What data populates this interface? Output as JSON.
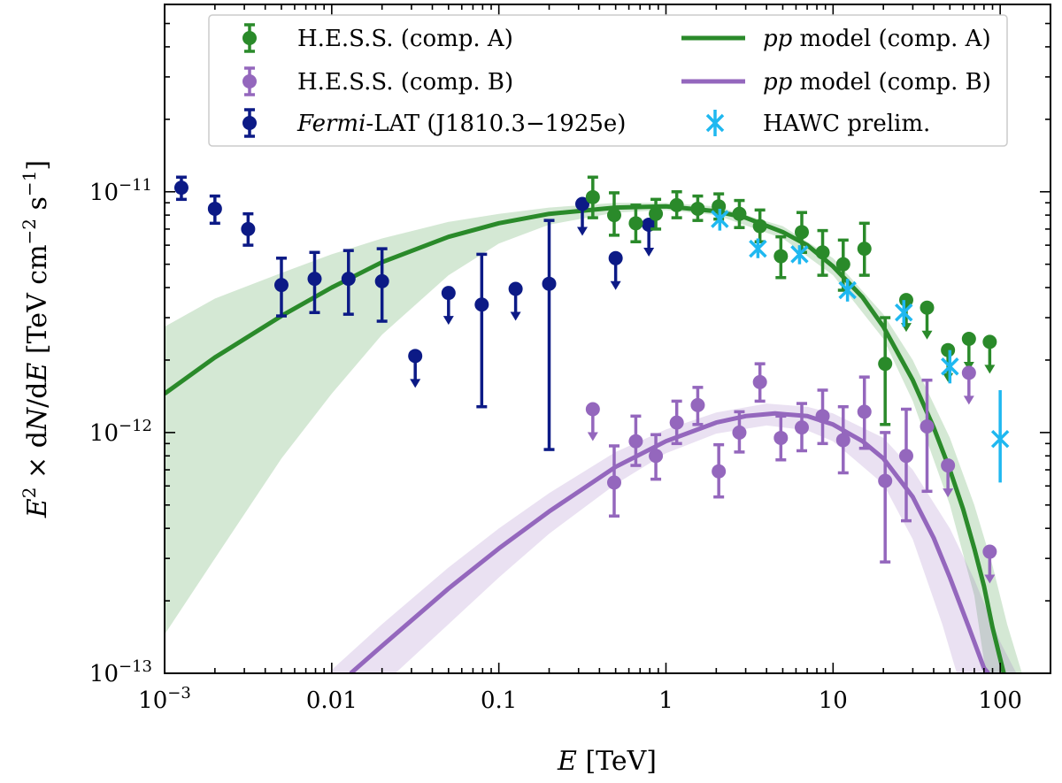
{
  "chart_data": {
    "type": "scatter",
    "xscale": "log",
    "yscale": "log",
    "xlim": [
      0.001,
      200
    ],
    "ylim": [
      1e-13,
      6e-11
    ],
    "xlabel": "E [TeV]",
    "ylabel": "E² × dN/dE [TeV cm⁻² s⁻¹]",
    "x_ticks": [
      {
        "value": 0.001,
        "label_base": "10",
        "label_exp": "−3"
      },
      {
        "value": 0.01,
        "label": "0.01"
      },
      {
        "value": 0.1,
        "label": "0.1"
      },
      {
        "value": 1,
        "label": "1"
      },
      {
        "value": 10,
        "label": "10"
      },
      {
        "value": 100,
        "label": "100"
      }
    ],
    "y_ticks": [
      {
        "value": 1e-13,
        "label_base": "10",
        "label_exp": "−13"
      },
      {
        "value": 1e-12,
        "label_base": "10",
        "label_exp": "−12"
      },
      {
        "value": 1e-11,
        "label_base": "10",
        "label_exp": "−11"
      }
    ],
    "legend": {
      "position": "top",
      "items": [
        {
          "label": "H.E.S.S. (comp. A)",
          "color": "#2a8a2a",
          "kind": "point"
        },
        {
          "label": "H.E.S.S. (comp. B)",
          "color": "#9467bd",
          "kind": "point"
        },
        {
          "label_italic": "Fermi",
          "label": "-LAT (J1810.3−1925e)",
          "color": "#0c1a86",
          "kind": "point"
        },
        {
          "label_italic": "pp",
          "label": " model (comp. A)",
          "color": "#2a8a2a",
          "kind": "line"
        },
        {
          "label_italic": "pp",
          "label": " model (comp. B)",
          "color": "#9467bd",
          "kind": "line"
        },
        {
          "label": "HAWC prelim.",
          "color": "#1fb8f0",
          "kind": "cross"
        }
      ]
    },
    "series": [
      {
        "name": "Fermi-LAT (J1810.3−1925e)",
        "color": "#0c1a86",
        "points": [
          {
            "x": 0.00126,
            "y": 1.04e-11,
            "lo": 9.3e-12,
            "hi": 1.15e-11
          },
          {
            "x": 0.002,
            "y": 8.5e-12,
            "lo": 7.4e-12,
            "hi": 9.6e-12
          },
          {
            "x": 0.00316,
            "y": 7e-12,
            "lo": 6e-12,
            "hi": 8.1e-12
          },
          {
            "x": 0.005,
            "y": 4.1e-12,
            "lo": 3.05e-12,
            "hi": 5.3e-12
          },
          {
            "x": 0.0079,
            "y": 4.35e-12,
            "lo": 3.15e-12,
            "hi": 5.6e-12
          },
          {
            "x": 0.0126,
            "y": 4.35e-12,
            "lo": 3.1e-12,
            "hi": 5.7e-12
          },
          {
            "x": 0.02,
            "y": 4.25e-12,
            "lo": 2.9e-12,
            "hi": 5.8e-12
          },
          {
            "x": 0.0316,
            "y": 2.08e-12,
            "ul": true
          },
          {
            "x": 0.05,
            "y": 3.8e-12,
            "ul": true
          },
          {
            "x": 0.079,
            "y": 3.4e-12,
            "lo": 1.28e-12,
            "hi": 5.5e-12
          },
          {
            "x": 0.126,
            "y": 3.95e-12,
            "ul": true
          },
          {
            "x": 0.2,
            "y": 4.15e-12,
            "lo": 8.5e-13,
            "hi": 7.6e-12
          },
          {
            "x": 0.316,
            "y": 8.9e-12,
            "ul": true
          },
          {
            "x": 0.5,
            "y": 5.3e-12,
            "ul": true
          },
          {
            "x": 0.79,
            "y": 7.3e-12,
            "ul": true
          }
        ]
      },
      {
        "name": "H.E.S.S. (comp. A)",
        "color": "#2a8a2a",
        "points": [
          {
            "x": 0.365,
            "y": 9.5e-12,
            "lo": 7.8e-12,
            "hi": 1.15e-11
          },
          {
            "x": 0.49,
            "y": 8e-12,
            "lo": 6.6e-12,
            "hi": 9.9e-12
          },
          {
            "x": 0.66,
            "y": 7.4e-12,
            "lo": 6.2e-12,
            "hi": 8.8e-12
          },
          {
            "x": 0.87,
            "y": 8.1e-12,
            "lo": 7e-12,
            "hi": 9.3e-12
          },
          {
            "x": 1.16,
            "y": 8.8e-12,
            "lo": 7.8e-12,
            "hi": 1e-11
          },
          {
            "x": 1.55,
            "y": 8.5e-12,
            "lo": 7.6e-12,
            "hi": 9.6e-12
          },
          {
            "x": 2.07,
            "y": 8.7e-12,
            "lo": 7.7e-12,
            "hi": 9.8e-12
          },
          {
            "x": 2.75,
            "y": 8.1e-12,
            "lo": 7.1e-12,
            "hi": 9.2e-12
          },
          {
            "x": 3.65,
            "y": 7.2e-12,
            "lo": 6.2e-12,
            "hi": 8.4e-12
          },
          {
            "x": 4.87,
            "y": 5.4e-12,
            "lo": 4.4e-12,
            "hi": 6.5e-12
          },
          {
            "x": 6.5,
            "y": 6.8e-12,
            "lo": 5.6e-12,
            "hi": 8.2e-12
          },
          {
            "x": 8.66,
            "y": 5.6e-12,
            "lo": 4.5e-12,
            "hi": 6.9e-12
          },
          {
            "x": 11.5,
            "y": 5e-12,
            "lo": 3.9e-12,
            "hi": 6.3e-12
          },
          {
            "x": 15.4,
            "y": 5.8e-12,
            "lo": 4.5e-12,
            "hi": 7.4e-12
          },
          {
            "x": 20.5,
            "y": 1.93e-12,
            "lo": 1.08e-12,
            "hi": 3e-12
          },
          {
            "x": 27.4,
            "y": 3.55e-12,
            "ul": true
          },
          {
            "x": 36.5,
            "y": 3.3e-12,
            "ul": true
          },
          {
            "x": 48.7,
            "y": 2.2e-12,
            "ul": true
          },
          {
            "x": 65,
            "y": 2.45e-12,
            "ul": true
          },
          {
            "x": 86.6,
            "y": 2.38e-12,
            "ul": true
          }
        ]
      },
      {
        "name": "H.E.S.S. (comp. B)",
        "color": "#9467bd",
        "points": [
          {
            "x": 0.365,
            "y": 1.25e-12,
            "ul": true
          },
          {
            "x": 0.49,
            "y": 6.2e-13,
            "lo": 4.5e-13,
            "hi": 8.8e-13
          },
          {
            "x": 0.66,
            "y": 9.2e-13,
            "lo": 7.3e-13,
            "hi": 1.17e-12
          },
          {
            "x": 0.87,
            "y": 8e-13,
            "lo": 6.4e-13,
            "hi": 9.8e-13
          },
          {
            "x": 1.16,
            "y": 1.1e-12,
            "lo": 9e-13,
            "hi": 1.35e-12
          },
          {
            "x": 1.55,
            "y": 1.3e-12,
            "lo": 1.08e-12,
            "hi": 1.54e-12
          },
          {
            "x": 2.07,
            "y": 6.9e-13,
            "lo": 5.4e-13,
            "hi": 8.9e-13
          },
          {
            "x": 2.75,
            "y": 1e-12,
            "lo": 8.3e-13,
            "hi": 1.22e-12
          },
          {
            "x": 3.65,
            "y": 1.62e-12,
            "lo": 1.35e-12,
            "hi": 1.93e-12
          },
          {
            "x": 4.87,
            "y": 9.5e-13,
            "lo": 7.7e-13,
            "hi": 1.17e-12
          },
          {
            "x": 6.5,
            "y": 1.05e-12,
            "lo": 8.4e-13,
            "hi": 1.32e-12
          },
          {
            "x": 8.66,
            "y": 1.17e-12,
            "lo": 9e-13,
            "hi": 1.5e-12
          },
          {
            "x": 11.5,
            "y": 9.3e-13,
            "lo": 6.8e-13,
            "hi": 1.28e-12
          },
          {
            "x": 15.4,
            "y": 1.22e-12,
            "lo": 8.6e-13,
            "hi": 1.7e-12
          },
          {
            "x": 20.5,
            "y": 6.3e-13,
            "lo": 2.9e-13,
            "hi": 1e-12
          },
          {
            "x": 27.4,
            "y": 8e-13,
            "lo": 4.3e-13,
            "hi": 1.25e-12
          },
          {
            "x": 36.5,
            "y": 1.06e-12,
            "lo": 5.7e-13,
            "hi": 1.65e-12
          },
          {
            "x": 48.7,
            "y": 7.3e-13,
            "ul": true
          },
          {
            "x": 65,
            "y": 1.77e-12,
            "ul": true
          },
          {
            "x": 86.6,
            "y": 3.2e-13,
            "ul": true
          }
        ]
      },
      {
        "name": "HAWC prelim.",
        "color": "#1fb8f0",
        "marker": "x",
        "points": [
          {
            "x": 2.1,
            "y": 7.7e-12,
            "lo": 6.9e-12,
            "hi": 8.5e-12
          },
          {
            "x": 3.55,
            "y": 5.8e-12,
            "lo": 5.3e-12,
            "hi": 6.4e-12
          },
          {
            "x": 6.3,
            "y": 5.5e-12,
            "lo": 5e-12,
            "hi": 6e-12
          },
          {
            "x": 12.2,
            "y": 3.9e-12,
            "lo": 3.5e-12,
            "hi": 4.35e-12
          },
          {
            "x": 26.5,
            "y": 3.15e-12,
            "lo": 2.75e-12,
            "hi": 3.55e-12
          },
          {
            "x": 50,
            "y": 1.88e-12,
            "lo": 1.6e-12,
            "hi": 2.2e-12
          },
          {
            "x": 100,
            "y": 9.4e-13,
            "lo": 6.2e-13,
            "hi": 1.5e-12
          }
        ]
      }
    ],
    "models": [
      {
        "name": "pp model (comp. A)",
        "color": "#2a8a2a",
        "band_color": "#2a8a2a",
        "band_opacity": 0.2,
        "curve": [
          [
            0.001,
            1.45e-12
          ],
          [
            0.002,
            2.05e-12
          ],
          [
            0.005,
            3.05e-12
          ],
          [
            0.01,
            4e-12
          ],
          [
            0.02,
            5.1e-12
          ],
          [
            0.05,
            6.5e-12
          ],
          [
            0.1,
            7.4e-12
          ],
          [
            0.2,
            8.1e-12
          ],
          [
            0.5,
            8.6e-12
          ],
          [
            1,
            8.7e-12
          ],
          [
            2,
            8.3e-12
          ],
          [
            3,
            7.8e-12
          ],
          [
            5,
            6.8e-12
          ],
          [
            7,
            6e-12
          ],
          [
            10,
            4.9e-12
          ],
          [
            15,
            3.65e-12
          ],
          [
            20,
            2.75e-12
          ],
          [
            30,
            1.65e-12
          ],
          [
            40,
            1.05e-12
          ],
          [
            50,
            7e-13
          ],
          [
            60,
            4.8e-13
          ],
          [
            70,
            3.3e-13
          ],
          [
            80,
            2.3e-13
          ],
          [
            90,
            1.55e-13
          ],
          [
            105,
            1e-13
          ]
        ],
        "band_upper": [
          [
            0.001,
            2.75e-12
          ],
          [
            0.002,
            3.6e-12
          ],
          [
            0.005,
            4.6e-12
          ],
          [
            0.01,
            5.5e-12
          ],
          [
            0.02,
            6.4e-12
          ],
          [
            0.05,
            7.5e-12
          ],
          [
            0.1,
            8.1e-12
          ],
          [
            0.2,
            8.6e-12
          ],
          [
            0.5,
            9e-12
          ],
          [
            1,
            9e-12
          ],
          [
            2,
            8.7e-12
          ],
          [
            5,
            7.2e-12
          ],
          [
            10,
            5.3e-12
          ],
          [
            20,
            3.1e-12
          ],
          [
            30,
            2e-12
          ],
          [
            50,
            9.5e-13
          ],
          [
            70,
            5e-13
          ],
          [
            90,
            2.8e-13
          ],
          [
            110,
            1.6e-13
          ],
          [
            135,
            1e-13
          ]
        ],
        "band_lower": [
          [
            0.001,
            1.45e-13
          ],
          [
            0.002,
            3e-13
          ],
          [
            0.005,
            7.8e-13
          ],
          [
            0.01,
            1.45e-12
          ],
          [
            0.02,
            2.55e-12
          ],
          [
            0.05,
            4.5e-12
          ],
          [
            0.1,
            6.1e-12
          ],
          [
            0.2,
            7.3e-12
          ],
          [
            0.5,
            8.2e-12
          ],
          [
            1,
            8.4e-12
          ],
          [
            2,
            8e-12
          ],
          [
            5,
            6.4e-12
          ],
          [
            10,
            4.5e-12
          ],
          [
            20,
            2.45e-12
          ],
          [
            30,
            1.35e-12
          ],
          [
            50,
            5e-13
          ],
          [
            70,
            2.1e-13
          ],
          [
            82,
            1e-13
          ]
        ]
      },
      {
        "name": "pp model (comp. B)",
        "color": "#9467bd",
        "band_color": "#9467bd",
        "band_opacity": 0.2,
        "curve": [
          [
            0.013,
            1e-13
          ],
          [
            0.02,
            1.3e-13
          ],
          [
            0.05,
            2.25e-13
          ],
          [
            0.1,
            3.3e-13
          ],
          [
            0.2,
            4.7e-13
          ],
          [
            0.5,
            7.2e-13
          ],
          [
            1,
            9.2e-13
          ],
          [
            2,
            1.1e-12
          ],
          [
            3,
            1.17e-12
          ],
          [
            4.5,
            1.2e-12
          ],
          [
            7,
            1.17e-12
          ],
          [
            10,
            1.08e-12
          ],
          [
            15,
            9.2e-13
          ],
          [
            20,
            7.8e-13
          ],
          [
            30,
            5.4e-13
          ],
          [
            40,
            3.65e-13
          ],
          [
            50,
            2.5e-13
          ],
          [
            65,
            1.55e-13
          ],
          [
            80,
            1.05e-13
          ],
          [
            85,
            1e-13
          ]
        ],
        "band_upper": [
          [
            0.0095,
            1e-13
          ],
          [
            0.02,
            1.6e-13
          ],
          [
            0.05,
            2.75e-13
          ],
          [
            0.1,
            4e-13
          ],
          [
            0.2,
            5.6e-13
          ],
          [
            0.5,
            8.3e-13
          ],
          [
            1,
            1.03e-12
          ],
          [
            2,
            1.21e-12
          ],
          [
            4,
            1.32e-12
          ],
          [
            7,
            1.28e-12
          ],
          [
            10,
            1.2e-12
          ],
          [
            20,
            9.5e-13
          ],
          [
            30,
            7e-13
          ],
          [
            50,
            4e-13
          ],
          [
            70,
            2.45e-13
          ],
          [
            100,
            1.35e-13
          ],
          [
            125,
            1e-13
          ]
        ],
        "band_lower": [
          [
            0.024,
            1e-13
          ],
          [
            0.05,
            1.6e-13
          ],
          [
            0.1,
            2.5e-13
          ],
          [
            0.2,
            3.8e-13
          ],
          [
            0.5,
            6.1e-13
          ],
          [
            1,
            8.2e-13
          ],
          [
            2,
            9.9e-13
          ],
          [
            4,
            1.07e-12
          ],
          [
            7,
            1.02e-12
          ],
          [
            10,
            9.2e-13
          ],
          [
            20,
            6.1e-13
          ],
          [
            30,
            3.6e-13
          ],
          [
            45,
            1.6e-13
          ],
          [
            55,
            1e-13
          ]
        ]
      }
    ]
  }
}
